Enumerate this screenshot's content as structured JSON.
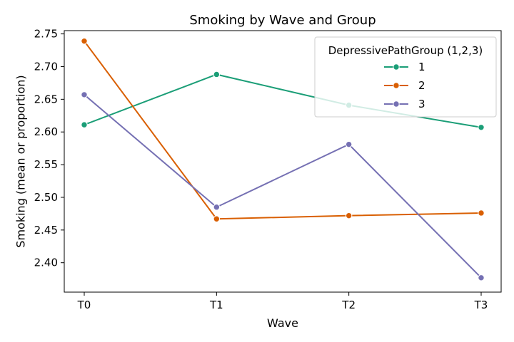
{
  "chart_data": {
    "type": "line",
    "title": "Smoking by Wave and Group",
    "xlabel": "Wave",
    "ylabel": "Smoking (mean or proportion)",
    "categories": [
      "T0",
      "T1",
      "T2",
      "T3"
    ],
    "ylim": [
      2.355,
      2.755
    ],
    "yticks": [
      2.4,
      2.45,
      2.5,
      2.55,
      2.6,
      2.65,
      2.7,
      2.75
    ],
    "ytick_labels": [
      "2.40",
      "2.45",
      "2.50",
      "2.55",
      "2.60",
      "2.65",
      "2.70",
      "2.75"
    ],
    "grid": false,
    "legend": {
      "title": "DepressivePathGroup (1,2,3)",
      "position": "top-right"
    },
    "series": [
      {
        "name": "1",
        "color": "#1b9e77",
        "values": [
          2.611,
          2.688,
          2.641,
          2.607
        ]
      },
      {
        "name": "2",
        "color": "#d95f02",
        "values": [
          2.739,
          2.467,
          2.472,
          2.476
        ]
      },
      {
        "name": "3",
        "color": "#7570b3",
        "values": [
          2.657,
          2.485,
          2.581,
          2.377
        ]
      }
    ]
  }
}
